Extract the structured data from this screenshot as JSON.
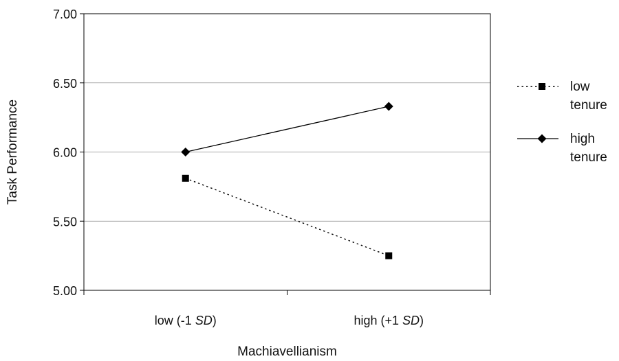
{
  "chart_data": {
    "type": "line",
    "title": "",
    "xlabel": "Machiavellianism",
    "ylabel": "Task Performance",
    "categories": [
      {
        "main": "low (-1 ",
        "italic": "SD",
        "end": ")"
      },
      {
        "main": "high (+1 ",
        "italic": "SD",
        "end": ")"
      }
    ],
    "ylim": [
      5.0,
      7.0
    ],
    "yticks": [
      "5.00",
      "5.50",
      "6.00",
      "6.50",
      "7.00"
    ],
    "grid": true,
    "legend_position": "right",
    "series": [
      {
        "name_lines": [
          "low",
          "tenure"
        ],
        "values": [
          5.81,
          5.25
        ],
        "marker": "square",
        "line_style": "dotted",
        "color": "#000000"
      },
      {
        "name_lines": [
          "high",
          "tenure"
        ],
        "values": [
          6.0,
          6.33
        ],
        "marker": "diamond",
        "line_style": "solid",
        "color": "#000000"
      }
    ]
  }
}
